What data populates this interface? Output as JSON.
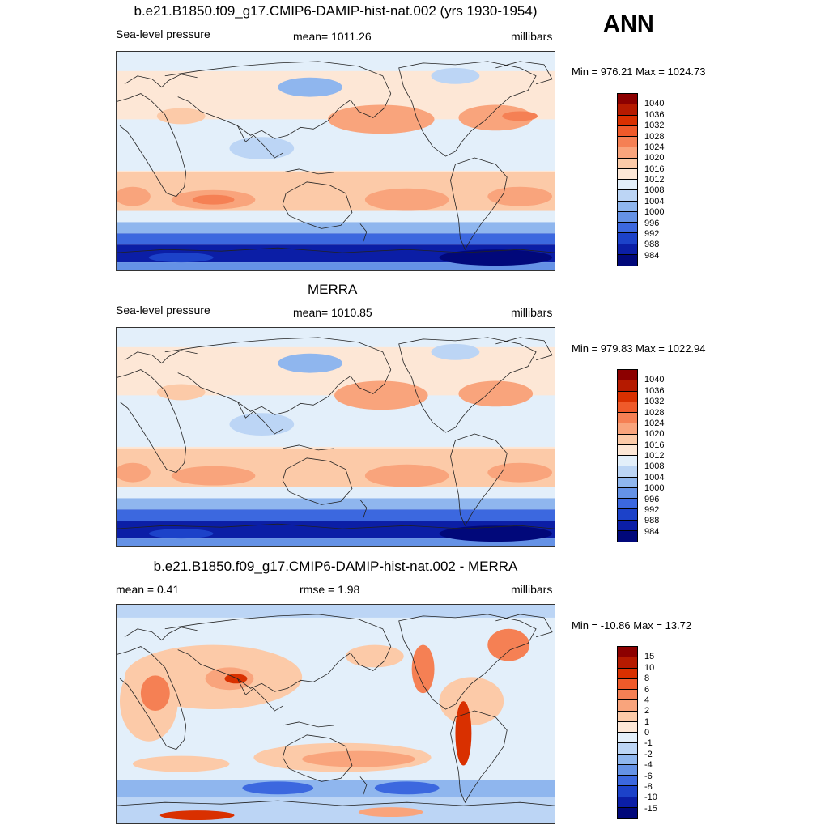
{
  "season": "ANN",
  "panels": [
    {
      "title": "b.e21.B1850.f09_g17.CMIP6-DAMIP-hist-nat.002 (yrs 1930-1954)",
      "left": "Sea-level pressure",
      "center": "mean= 1011.26",
      "right": "millibars",
      "minmax": "Min = 976.21 Max = 1024.73",
      "legend_labels": [
        "1040",
        "1036",
        "1032",
        "1028",
        "1024",
        "1020",
        "1016",
        "1012",
        "1008",
        "1004",
        "1000",
        "996",
        "992",
        "988",
        "984"
      ],
      "legend_colors": [
        "#8c0000",
        "#b51a00",
        "#d93000",
        "#ef5a2a",
        "#f58054",
        "#f9a47c",
        "#fccaa8",
        "#fde7d6",
        "#e3effa",
        "#bcd5f5",
        "#8fb6ee",
        "#6592e6",
        "#3c68df",
        "#1c42c9",
        "#0b1ea6",
        "#01087a"
      ],
      "map_type": "model"
    },
    {
      "title": "MERRA",
      "left": "Sea-level pressure",
      "center": "mean= 1010.85",
      "right": "millibars",
      "minmax": "Min = 979.83 Max = 1022.94",
      "legend_labels": [
        "1040",
        "1036",
        "1032",
        "1028",
        "1024",
        "1020",
        "1016",
        "1012",
        "1008",
        "1004",
        "1000",
        "996",
        "992",
        "988",
        "984"
      ],
      "legend_colors": [
        "#8c0000",
        "#b51a00",
        "#d93000",
        "#ef5a2a",
        "#f58054",
        "#f9a47c",
        "#fccaa8",
        "#fde7d6",
        "#e3effa",
        "#bcd5f5",
        "#8fb6ee",
        "#6592e6",
        "#3c68df",
        "#1c42c9",
        "#0b1ea6",
        "#01087a"
      ],
      "map_type": "obs"
    },
    {
      "title": "b.e21.B1850.f09_g17.CMIP6-DAMIP-hist-nat.002 - MERRA",
      "left": "mean =   0.41",
      "center": "rmse =   1.98",
      "right": "millibars",
      "minmax": "Min = -10.86 Max =  13.72",
      "legend_labels": [
        "15",
        "10",
        "8",
        "6",
        "4",
        "2",
        "1",
        "0",
        "-1",
        "-2",
        "-4",
        "-6",
        "-8",
        "-10",
        "-15"
      ],
      "legend_colors": [
        "#8c0000",
        "#b51a00",
        "#d93000",
        "#ef5a2a",
        "#f58054",
        "#f9a47c",
        "#fccaa8",
        "#fde7d6",
        "#e3effa",
        "#bcd5f5",
        "#8fb6ee",
        "#6592e6",
        "#3c68df",
        "#1c42c9",
        "#0b1ea6",
        "#01087a"
      ],
      "map_type": "diff"
    }
  ]
}
